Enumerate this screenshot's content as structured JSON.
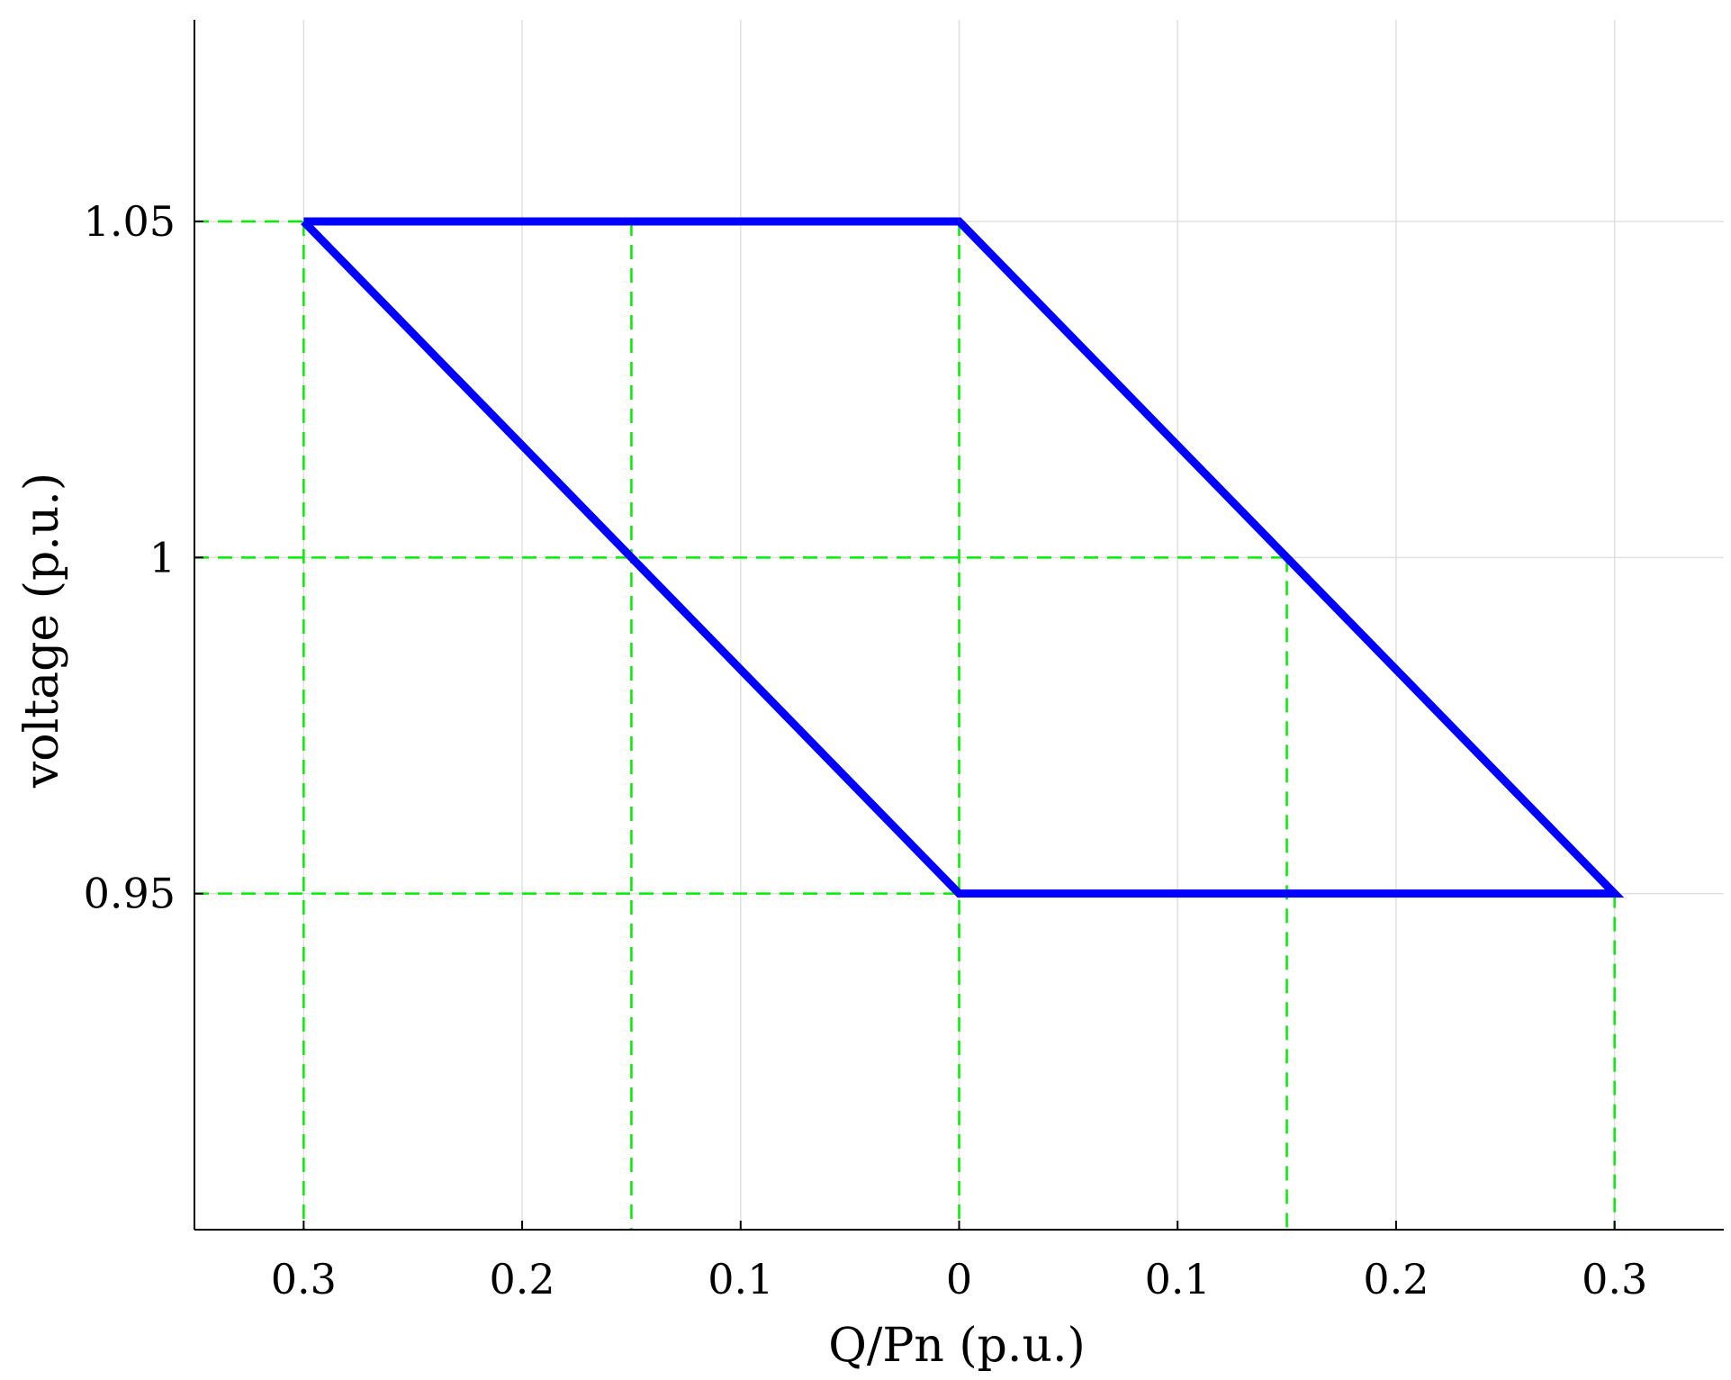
{
  "chart_data": {
    "type": "line",
    "title": "",
    "xlabel": "Q/Pn (p.u.)",
    "ylabel": "voltage (p.u.)",
    "x_range": [
      -0.35,
      0.35
    ],
    "y_range": [
      0.9,
      1.08
    ],
    "x_ticks": [
      -0.3,
      -0.2,
      -0.1,
      0,
      0.1,
      0.2,
      0.3
    ],
    "x_tick_labels": [
      "0.3",
      "0.2",
      "0.1",
      "0",
      "0.1",
      "0.2",
      "0.3"
    ],
    "y_ticks": [
      0.95,
      1.0,
      1.05
    ],
    "y_tick_labels": [
      "0.95",
      "1",
      "1.05"
    ],
    "grid": true,
    "series": [
      {
        "color": "#0000ff",
        "x": [
          -0.3,
          0,
          0.3,
          0,
          -0.3
        ],
        "y": [
          1.05,
          1.05,
          0.95,
          0.95,
          1.05
        ]
      }
    ],
    "reference_lines": {
      "color": "#00ee00",
      "style": "dashed",
      "vertical": [
        {
          "x": -0.3,
          "y_top": 1.05
        },
        {
          "x": -0.15,
          "y_top": 1.05
        },
        {
          "x": 0,
          "y_top": 1.05
        },
        {
          "x": 0.15,
          "y_top": 1.0
        },
        {
          "x": 0.3,
          "y_top": 0.95
        }
      ],
      "horizontal": [
        {
          "y": 1.05,
          "x_end": 0
        },
        {
          "y": 1.0,
          "x_end": 0.15
        },
        {
          "y": 0.95,
          "x_end": 0.3
        }
      ]
    },
    "gridline_color": "#e0e0e0",
    "axis_color": "#000000"
  }
}
